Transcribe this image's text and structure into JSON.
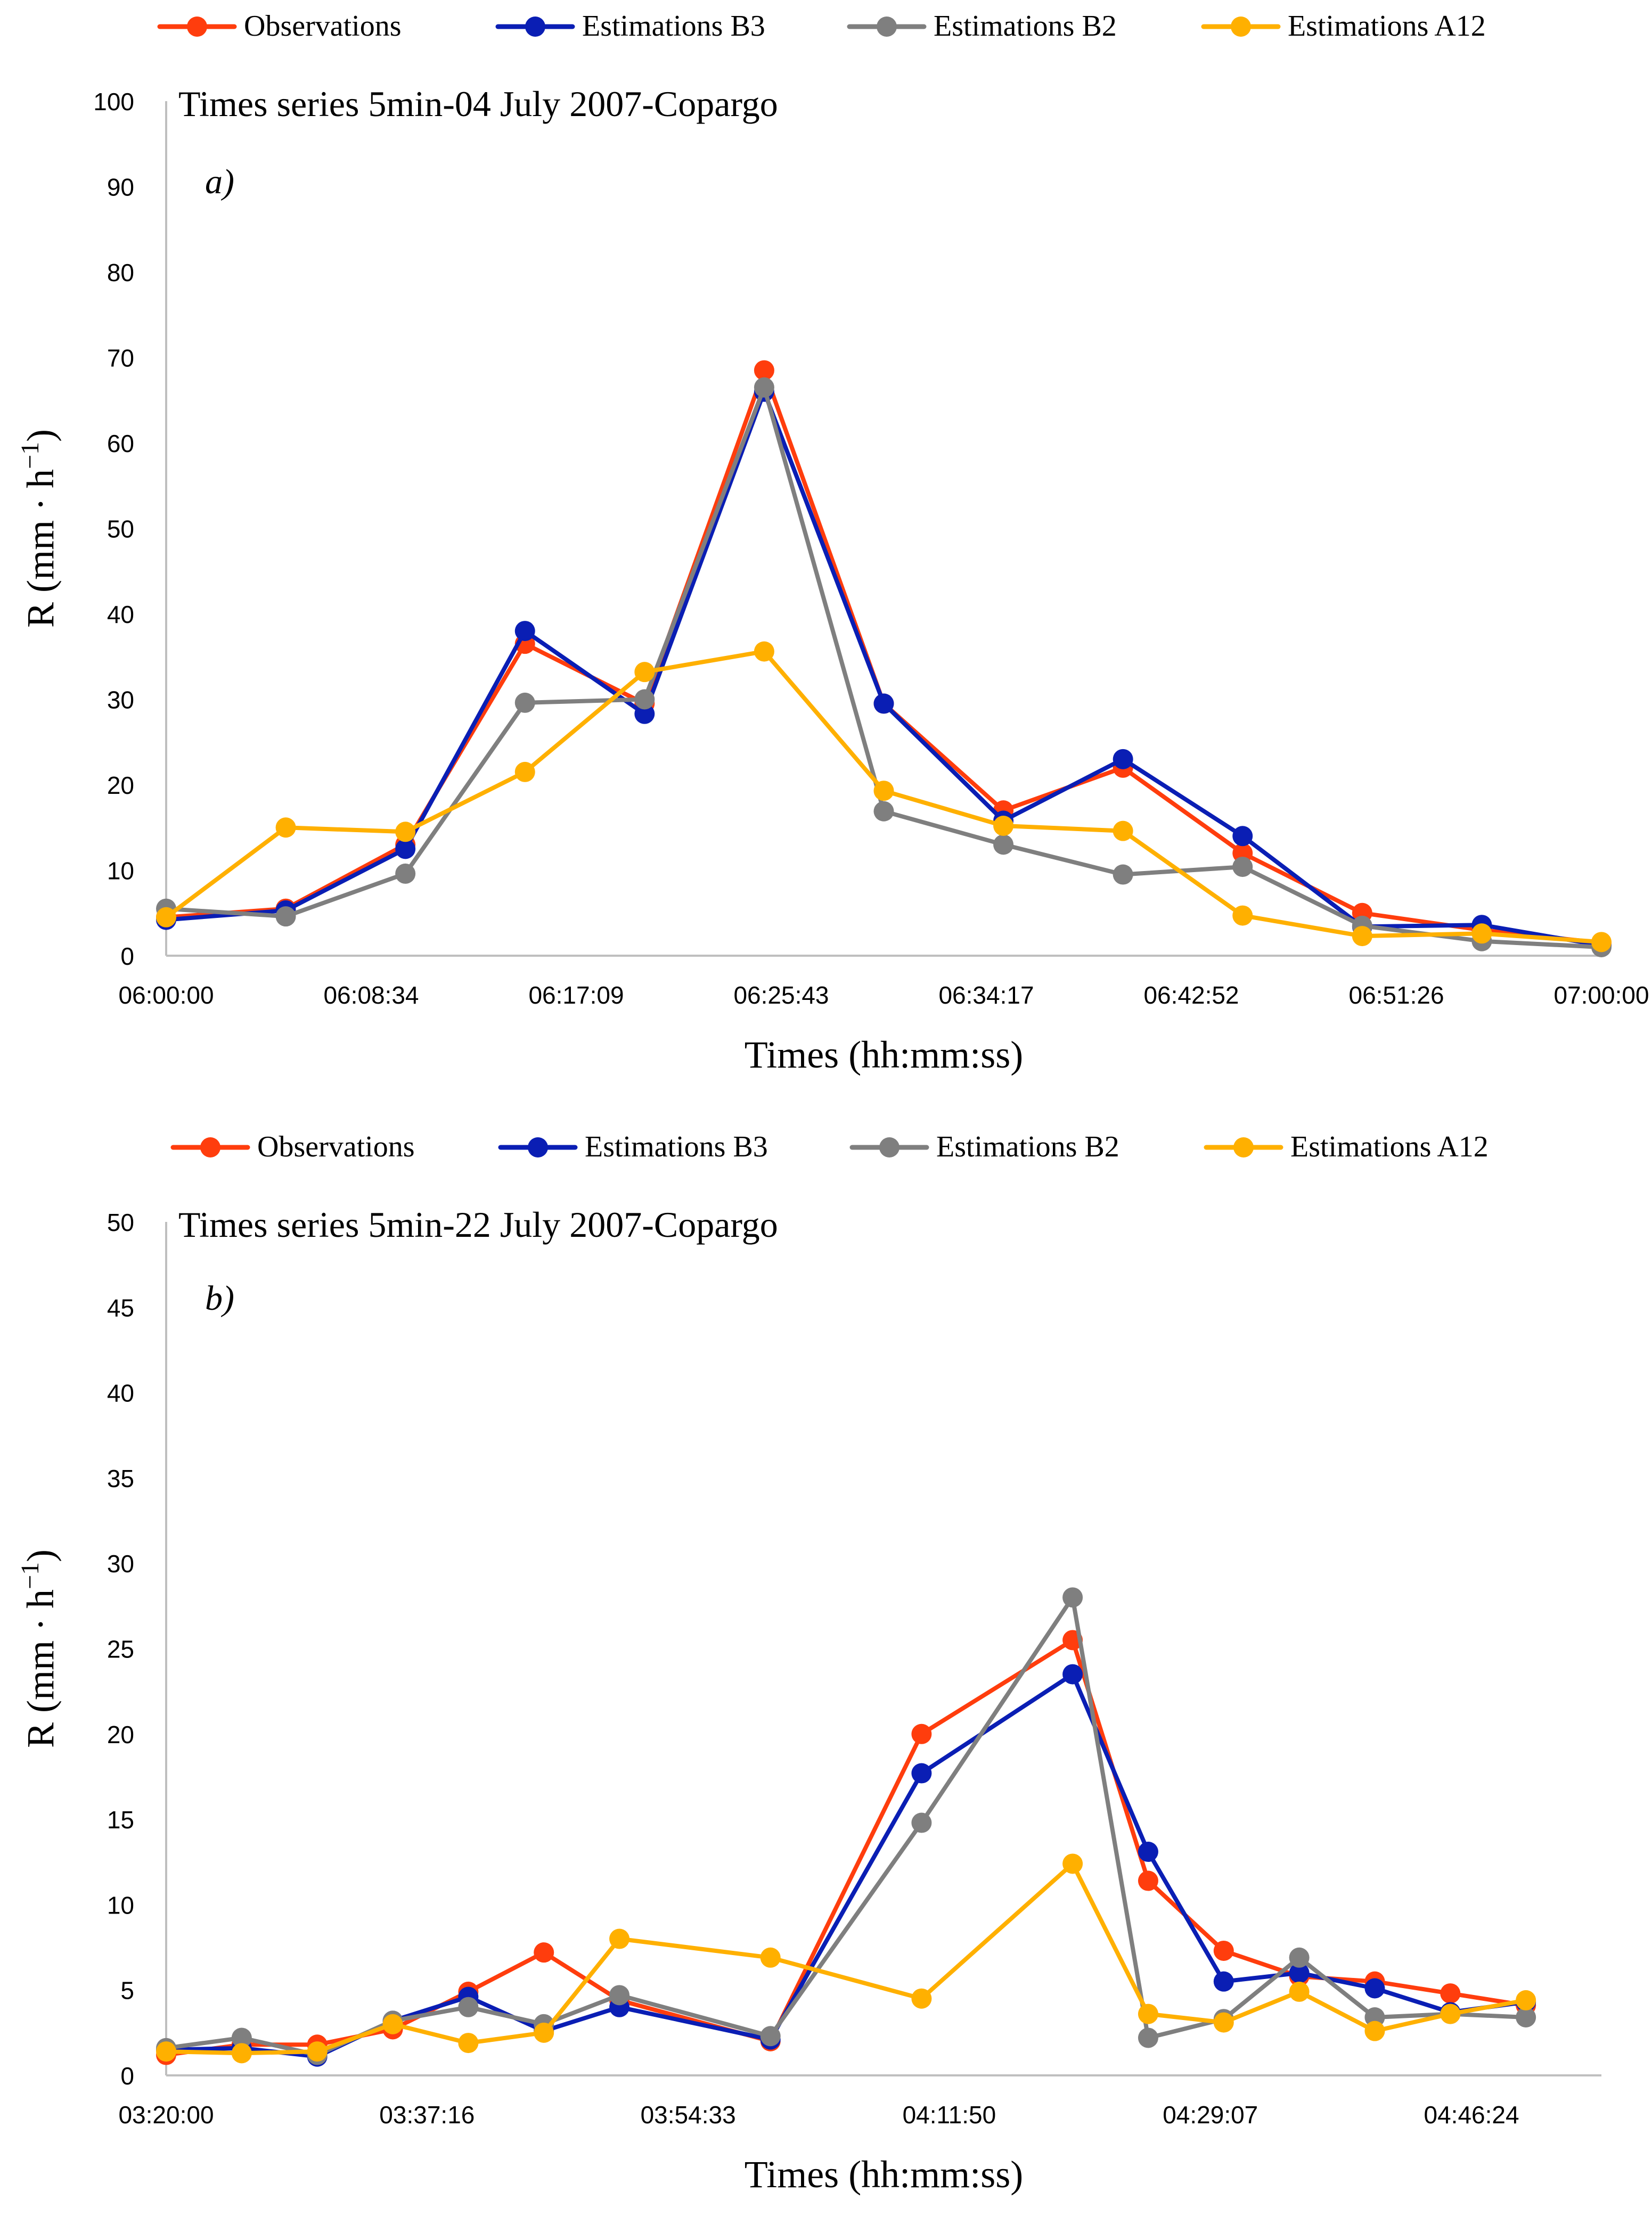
{
  "chart_data": [
    {
      "type": "line",
      "title": "Times series 5min-04 July 2007-Copargo",
      "panel_label": "a)",
      "xlabel": "Times (hh:mm:ss)",
      "ylabel": "R (mm · h",
      "ylabel_sup": "−1",
      "ylabel_close": ")",
      "ylim": [
        0,
        100
      ],
      "ytick_step": 10,
      "xlim": [
        0,
        60
      ],
      "xticks": [
        0,
        8.571,
        17.143,
        25.714,
        34.286,
        42.857,
        51.429,
        60
      ],
      "xtick_labels": [
        "06:00:00",
        "06:08:34",
        "06:17:09",
        "06:25:43",
        "06:34:17",
        "06:42:52",
        "06:51:26",
        "07:00:00"
      ],
      "legend_position": "top",
      "grid": false,
      "x": [
        0,
        5,
        10,
        15,
        20,
        25,
        30,
        35,
        40,
        45,
        50,
        55,
        60
      ],
      "series": [
        {
          "name": "Observations",
          "color": "#ff3d0d",
          "values": [
            4.5,
            5.5,
            13.0,
            36.5,
            29.5,
            68.5,
            29.5,
            17.0,
            22.0,
            12.0,
            5.0,
            3.0,
            1.5
          ]
        },
        {
          "name": "Estimations B3",
          "color": "#0a1eb4",
          "values": [
            4.2,
            5.3,
            12.5,
            38.0,
            28.3,
            66.0,
            29.5,
            15.8,
            23.0,
            14.0,
            3.4,
            3.6,
            1.2
          ]
        },
        {
          "name": "Estimations B2",
          "color": "#7f7f7f",
          "values": [
            5.5,
            4.6,
            9.6,
            29.6,
            30.0,
            66.5,
            16.9,
            13.0,
            9.5,
            10.4,
            3.5,
            1.7,
            1.0
          ]
        },
        {
          "name": "Estimations A12",
          "color": "#ffb000",
          "values": [
            4.5,
            15.0,
            14.5,
            21.5,
            33.2,
            35.6,
            19.3,
            15.2,
            14.6,
            4.7,
            2.3,
            2.6,
            1.6
          ]
        }
      ]
    },
    {
      "type": "line",
      "title": "Times series 5min-22 July 2007-Copargo",
      "panel_label": "b)",
      "xlabel": "Times (hh:mm:ss)",
      "ylabel": "R (mm · h",
      "ylabel_sup": "−1",
      "ylabel_close": ")",
      "ylim": [
        0,
        50
      ],
      "ytick_step": 5,
      "xlim": [
        0,
        95
      ],
      "xticks": [
        0,
        17.267,
        34.55,
        51.833,
        69.117,
        86.4
      ],
      "xtick_labels": [
        "03:20:00",
        "03:37:16",
        "03:54:33",
        "04:11:50",
        "04:29:07",
        "04:46:24"
      ],
      "legend_position": "top",
      "grid": false,
      "x": [
        0,
        5,
        10,
        15,
        20,
        25,
        30,
        40,
        50,
        60,
        65,
        70,
        75,
        80,
        85,
        90
      ],
      "series": [
        {
          "name": "Observations",
          "color": "#ff3d0d",
          "values": [
            1.2,
            1.8,
            1.8,
            2.7,
            4.9,
            7.2,
            4.4,
            2.0,
            20.0,
            25.5,
            11.4,
            7.3,
            5.8,
            5.5,
            4.8,
            4.1
          ]
        },
        {
          "name": "Estimations B3",
          "color": "#0a1eb4",
          "values": [
            1.5,
            1.6,
            1.1,
            3.2,
            4.6,
            2.6,
            4.0,
            2.1,
            17.7,
            23.5,
            13.1,
            5.5,
            6.0,
            5.1,
            3.7,
            4.3
          ]
        },
        {
          "name": "Estimations B2",
          "color": "#7f7f7f",
          "values": [
            1.6,
            2.2,
            1.2,
            3.2,
            4.0,
            3.0,
            4.7,
            2.3,
            14.8,
            28.0,
            2.2,
            3.3,
            6.9,
            3.4,
            3.6,
            3.4
          ]
        },
        {
          "name": "Estimations A12",
          "color": "#ffb000",
          "values": [
            1.4,
            1.3,
            1.4,
            3.0,
            1.9,
            2.5,
            8.0,
            6.9,
            4.5,
            12.4,
            3.6,
            3.1,
            4.9,
            2.6,
            3.6,
            4.4
          ]
        }
      ]
    }
  ]
}
